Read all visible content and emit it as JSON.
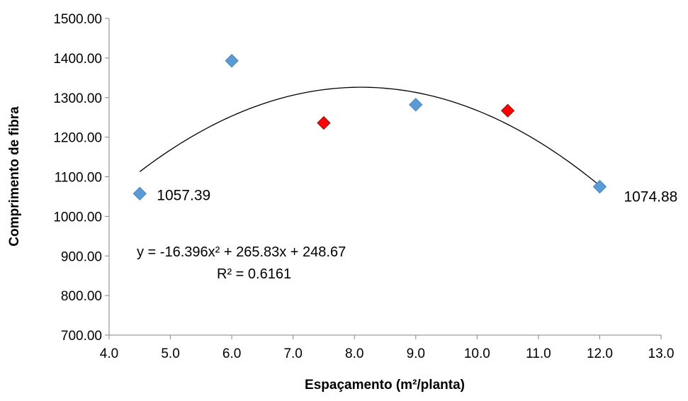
{
  "chart_data": {
    "type": "scatter",
    "title": "",
    "xlabel": "Espaçamento (m²/planta)",
    "ylabel": "Comprimento de fibra",
    "xlim": [
      4.0,
      13.0
    ],
    "ylim": [
      700.0,
      1500.0
    ],
    "x_ticks": [
      "4.0",
      "5.0",
      "6.0",
      "7.0",
      "8.0",
      "9.0",
      "10.0",
      "11.0",
      "12.0",
      "13.0"
    ],
    "y_ticks": [
      "700.00",
      "800.00",
      "900.00",
      "1000.00",
      "1100.00",
      "1200.00",
      "1300.00",
      "1400.00",
      "1500.00"
    ],
    "grid": false,
    "points": [
      {
        "x": 4.5,
        "y": 1057.39,
        "color": "#5B9BD5",
        "label": "1057.39"
      },
      {
        "x": 6.0,
        "y": 1393,
        "color": "#5B9BD5",
        "label": ""
      },
      {
        "x": 7.5,
        "y": 1236,
        "color": "#FF0000",
        "label": ""
      },
      {
        "x": 9.0,
        "y": 1282,
        "color": "#5B9BD5",
        "label": ""
      },
      {
        "x": 10.5,
        "y": 1267,
        "color": "#FF0000",
        "label": ""
      },
      {
        "x": 12.0,
        "y": 1074.88,
        "color": "#5B9BD5",
        "label": "1074.88"
      }
    ],
    "trendline": {
      "type": "polynomial",
      "coefficients": [
        -16.396,
        265.83,
        248.67
      ],
      "x_range": [
        4.5,
        12.0
      ],
      "equation": "y = -16.396x² + 265.83x + 248.67",
      "r_squared": "R² = 0.6161"
    }
  }
}
